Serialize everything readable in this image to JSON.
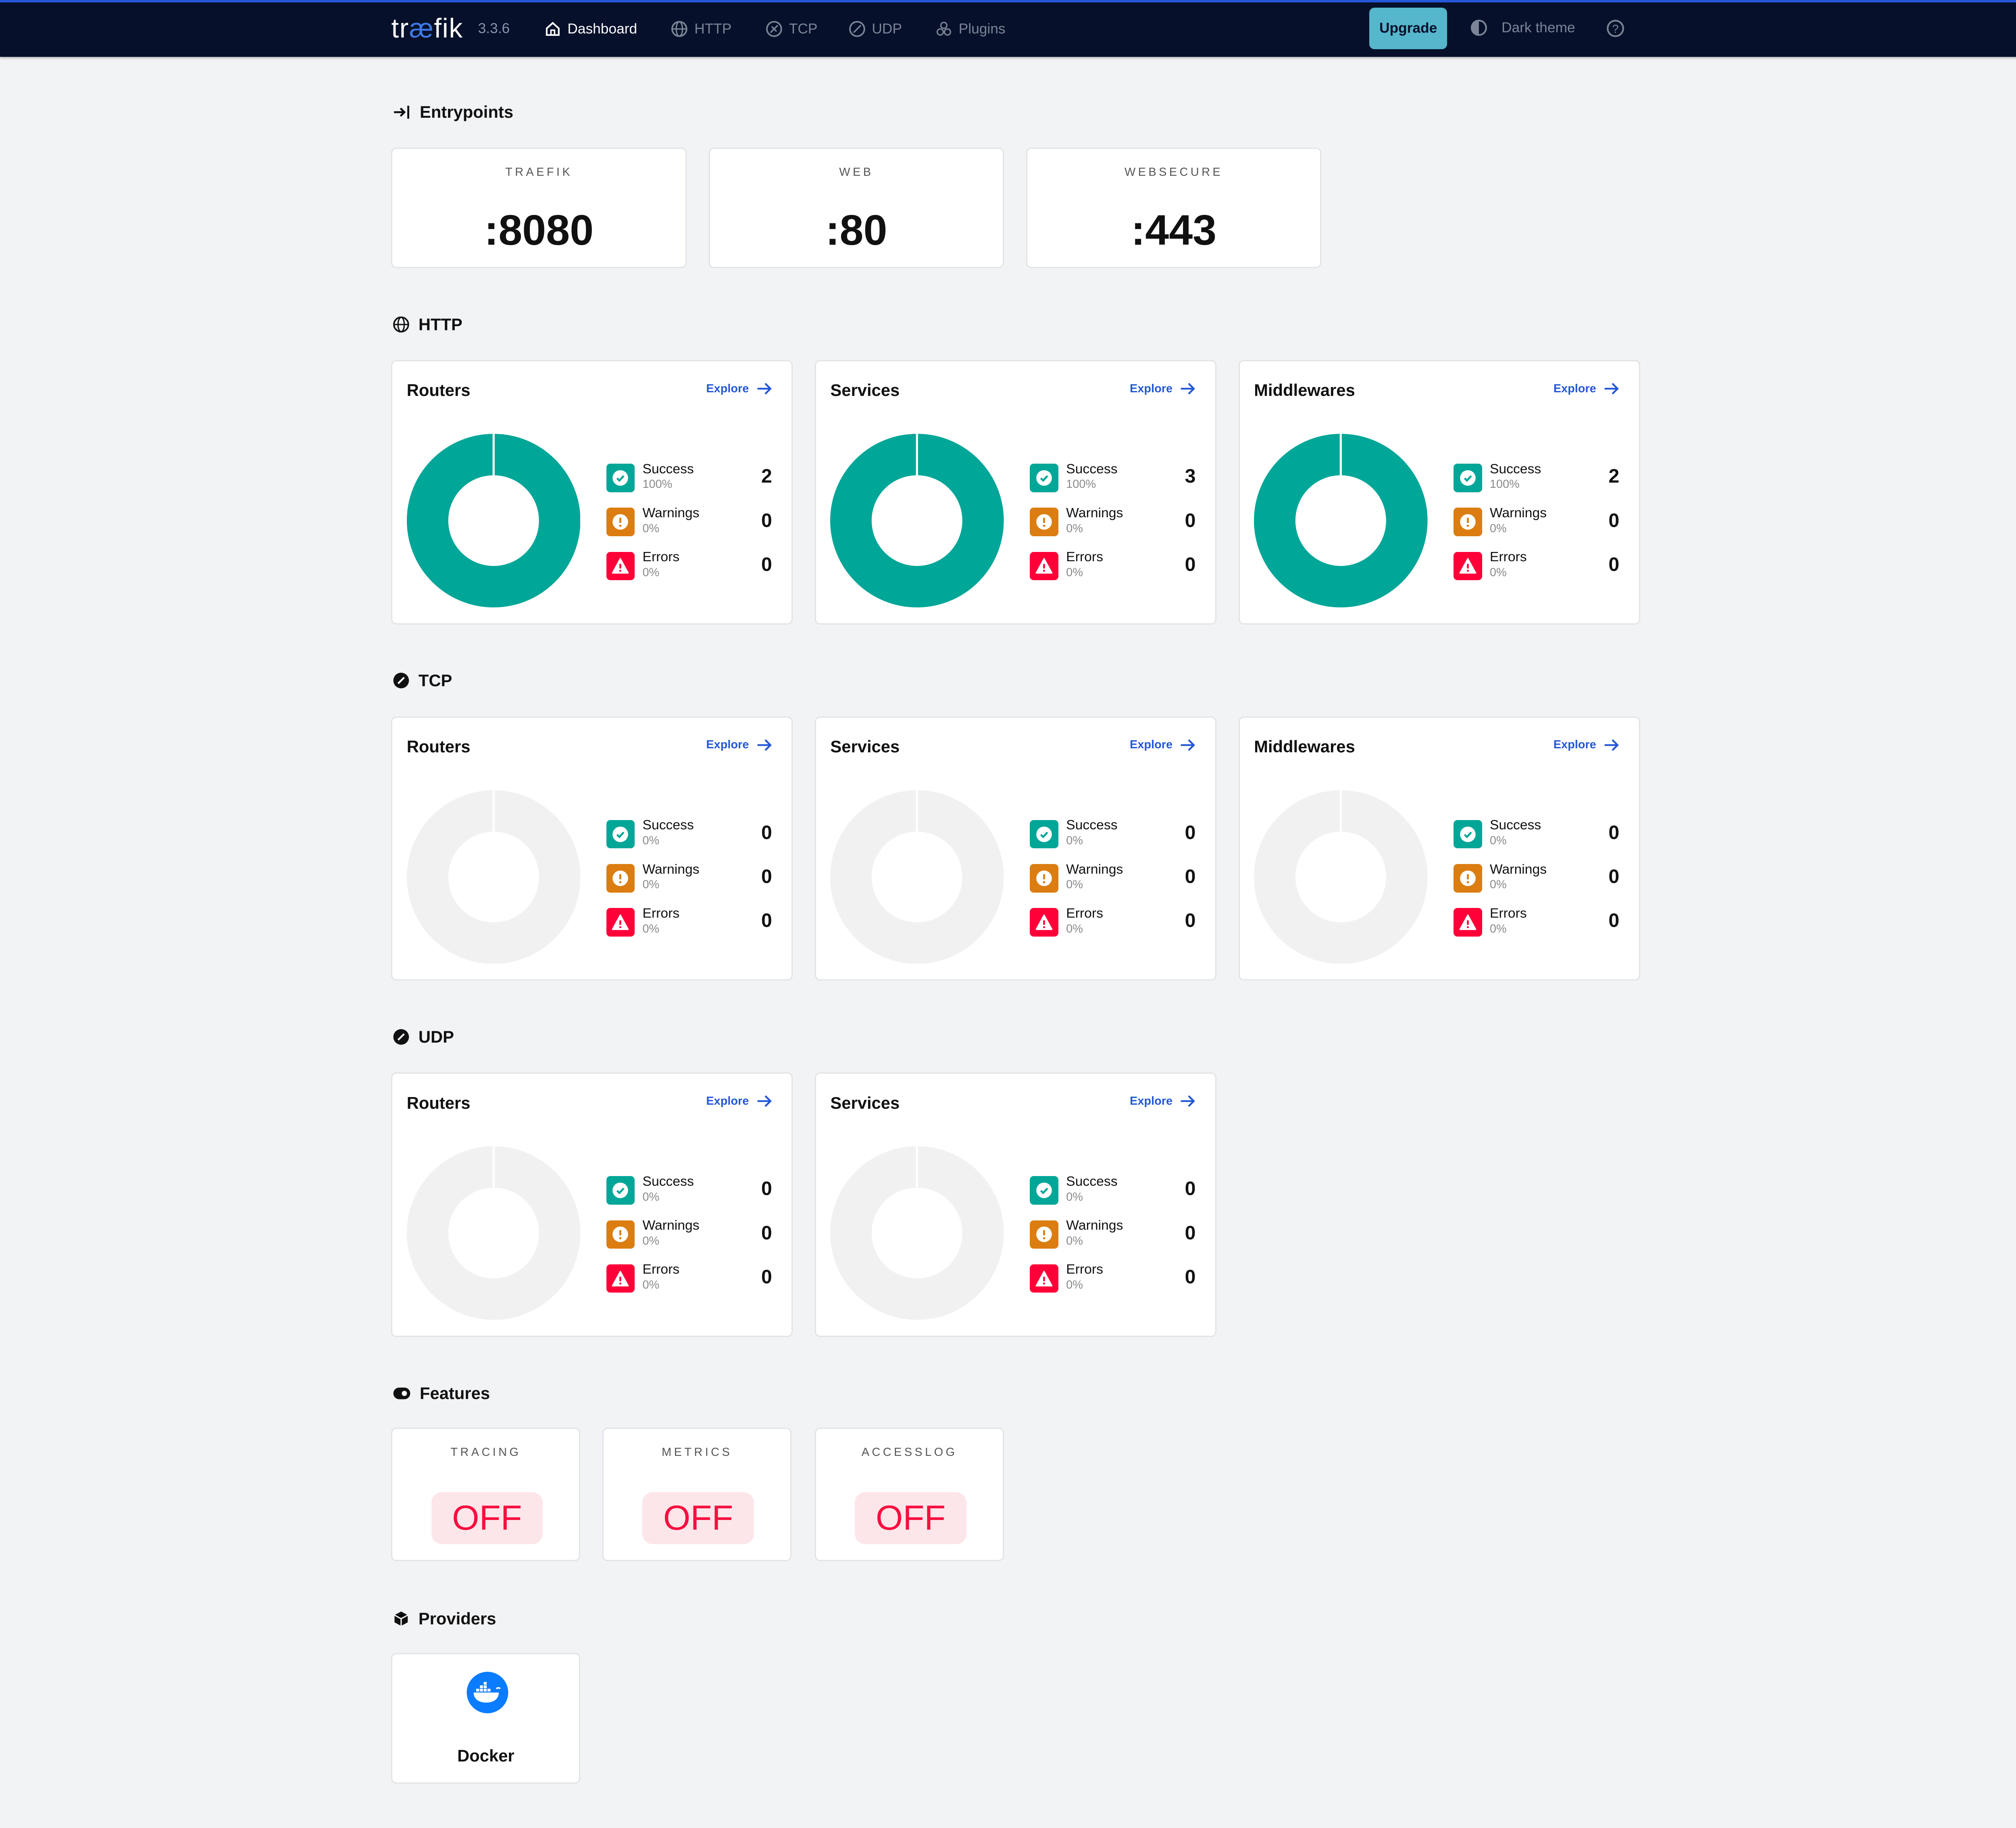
{
  "nav": {
    "logo_prefix": "tr",
    "logo_ae": "æ",
    "logo_suffix": "fik",
    "version": "3.3.6",
    "items": [
      {
        "label": "Dashboard",
        "icon": "home-icon",
        "active": true
      },
      {
        "label": "HTTP",
        "icon": "globe-icon",
        "active": false
      },
      {
        "label": "TCP",
        "icon": "tcp-icon",
        "active": false
      },
      {
        "label": "UDP",
        "icon": "udp-icon",
        "active": false
      },
      {
        "label": "Plugins",
        "icon": "plugins-icon",
        "active": false
      }
    ],
    "upgrade": "Upgrade",
    "theme": "Dark theme",
    "help_icon": "help-icon"
  },
  "colors": {
    "success": "#00a697",
    "warning": "#db7d11",
    "error": "#ff0039",
    "link": "#2457d6",
    "empty": "#f1f1f2"
  },
  "entrypoints": {
    "title": "Entrypoints",
    "items": [
      {
        "name": "TRAEFIK",
        "port": ":8080"
      },
      {
        "name": "WEB",
        "port": ":80"
      },
      {
        "name": "WEBSECURE",
        "port": ":443"
      }
    ]
  },
  "sections": [
    {
      "title": "HTTP",
      "icon": "globe-icon",
      "cards": [
        {
          "title": "Routers",
          "explore": "Explore",
          "rows": [
            {
              "label": "Success",
              "pct": "100%",
              "value": 2
            },
            {
              "label": "Warnings",
              "pct": "0%",
              "value": 0
            },
            {
              "label": "Errors",
              "pct": "0%",
              "value": 0
            }
          ]
        },
        {
          "title": "Services",
          "explore": "Explore",
          "rows": [
            {
              "label": "Success",
              "pct": "100%",
              "value": 3
            },
            {
              "label": "Warnings",
              "pct": "0%",
              "value": 0
            },
            {
              "label": "Errors",
              "pct": "0%",
              "value": 0
            }
          ]
        },
        {
          "title": "Middlewares",
          "explore": "Explore",
          "rows": [
            {
              "label": "Success",
              "pct": "100%",
              "value": 2
            },
            {
              "label": "Warnings",
              "pct": "0%",
              "value": 0
            },
            {
              "label": "Errors",
              "pct": "0%",
              "value": 0
            }
          ]
        }
      ]
    },
    {
      "title": "TCP",
      "icon": "tcp-icon",
      "cards": [
        {
          "title": "Routers",
          "explore": "Explore",
          "rows": [
            {
              "label": "Success",
              "pct": "0%",
              "value": 0
            },
            {
              "label": "Warnings",
              "pct": "0%",
              "value": 0
            },
            {
              "label": "Errors",
              "pct": "0%",
              "value": 0
            }
          ]
        },
        {
          "title": "Services",
          "explore": "Explore",
          "rows": [
            {
              "label": "Success",
              "pct": "0%",
              "value": 0
            },
            {
              "label": "Warnings",
              "pct": "0%",
              "value": 0
            },
            {
              "label": "Errors",
              "pct": "0%",
              "value": 0
            }
          ]
        },
        {
          "title": "Middlewares",
          "explore": "Explore",
          "rows": [
            {
              "label": "Success",
              "pct": "0%",
              "value": 0
            },
            {
              "label": "Warnings",
              "pct": "0%",
              "value": 0
            },
            {
              "label": "Errors",
              "pct": "0%",
              "value": 0
            }
          ]
        }
      ]
    },
    {
      "title": "UDP",
      "icon": "udp-icon",
      "cards": [
        {
          "title": "Routers",
          "explore": "Explore",
          "rows": [
            {
              "label": "Success",
              "pct": "0%",
              "value": 0
            },
            {
              "label": "Warnings",
              "pct": "0%",
              "value": 0
            },
            {
              "label": "Errors",
              "pct": "0%",
              "value": 0
            }
          ]
        },
        {
          "title": "Services",
          "explore": "Explore",
          "rows": [
            {
              "label": "Success",
              "pct": "0%",
              "value": 0
            },
            {
              "label": "Warnings",
              "pct": "0%",
              "value": 0
            },
            {
              "label": "Errors",
              "pct": "0%",
              "value": 0
            }
          ]
        }
      ]
    }
  ],
  "features": {
    "title": "Features",
    "items": [
      {
        "name": "TRACING",
        "state": "OFF"
      },
      {
        "name": "METRICS",
        "state": "OFF"
      },
      {
        "name": "ACCESSLOG",
        "state": "OFF"
      }
    ]
  },
  "providers": {
    "title": "Providers",
    "items": [
      {
        "name": "Docker",
        "icon": "docker-icon"
      }
    ]
  }
}
